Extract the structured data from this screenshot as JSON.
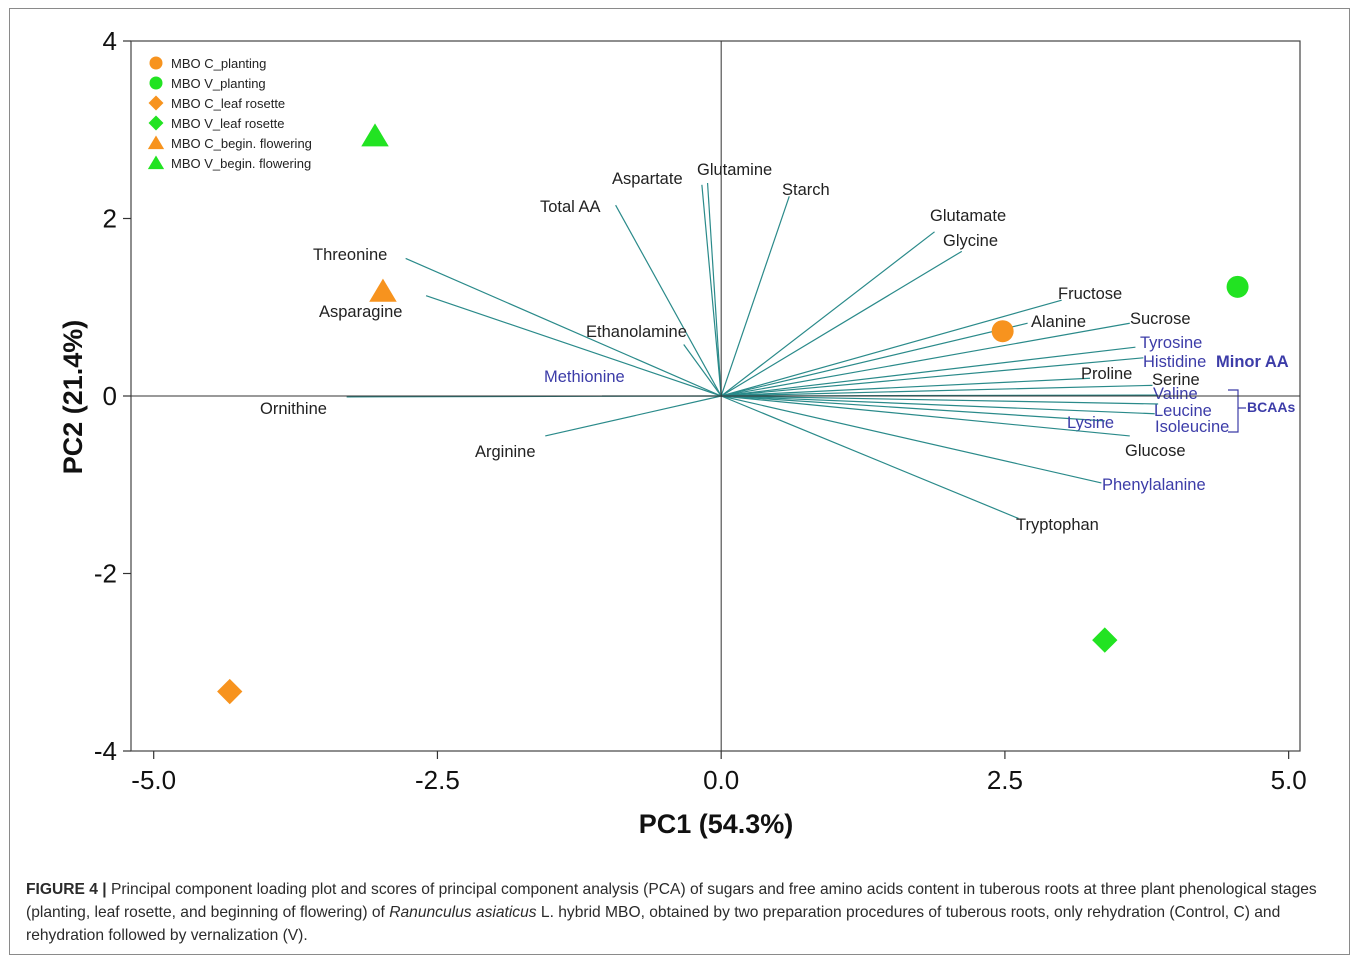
{
  "chart_data": {
    "type": "scatter",
    "xlabel": "PC1 (54.3%)",
    "ylabel": "PC2 (21.4%)",
    "xlim": [
      -5.2,
      5.1
    ],
    "ylim": [
      -4.0,
      4.0
    ],
    "xticks": [
      -5.0,
      -2.5,
      0.0,
      2.5,
      5.0
    ],
    "xtick_labels": [
      "-5.0",
      "-2.5",
      "0.0",
      "2.5",
      "5.0"
    ],
    "yticks": [
      -4,
      -2,
      0,
      2,
      4
    ],
    "ytick_labels": [
      "-4",
      "-2",
      "0",
      "2",
      "4"
    ],
    "grid": false,
    "legend_position": "top-left",
    "score_series": [
      {
        "name": "MBO C_planting",
        "marker": "circle",
        "color": "#f7931e",
        "x": 2.48,
        "y": 0.73
      },
      {
        "name": "MBO V_planting",
        "marker": "circle",
        "color": "#22e322",
        "x": 4.55,
        "y": 1.23
      },
      {
        "name": "MBO C_leaf rosette",
        "marker": "diamond",
        "color": "#f7931e",
        "x": -4.33,
        "y": -3.33
      },
      {
        "name": "MBO V_leaf rosette",
        "marker": "diamond",
        "color": "#22e322",
        "x": 3.38,
        "y": -2.75
      },
      {
        "name": "MBO C_begin. flowering",
        "marker": "triangle",
        "color": "#f7931e",
        "x": -2.98,
        "y": 1.18
      },
      {
        "name": "MBO V_begin. flowering",
        "marker": "triangle",
        "color": "#22e322",
        "x": -3.05,
        "y": 2.93
      }
    ],
    "loadings": [
      {
        "label": "Total AA",
        "x": -0.93,
        "y": 2.15,
        "label_color": "#222222"
      },
      {
        "label": "Aspartate",
        "x": -0.17,
        "y": 2.38,
        "label_color": "#222222"
      },
      {
        "label": "Glutamine",
        "x": -0.12,
        "y": 2.4,
        "label_color": "#222222"
      },
      {
        "label": "Starch",
        "x": 0.6,
        "y": 2.25,
        "label_color": "#222222"
      },
      {
        "label": "Glutamate",
        "x": 1.88,
        "y": 1.85,
        "label_color": "#222222"
      },
      {
        "label": "Glycine",
        "x": 2.12,
        "y": 1.63,
        "label_color": "#222222"
      },
      {
        "label": "Fructose",
        "x": 3.0,
        "y": 1.08,
        "label_color": "#222222"
      },
      {
        "label": "Alanine",
        "x": 2.7,
        "y": 0.82,
        "label_color": "#222222"
      },
      {
        "label": "Sucrose",
        "x": 3.6,
        "y": 0.82,
        "label_color": "#222222"
      },
      {
        "label": "Tyrosine",
        "x": 3.65,
        "y": 0.55,
        "label_color": "#3c3ca8"
      },
      {
        "label": "Histidine",
        "x": 3.72,
        "y": 0.43,
        "label_color": "#3c3ca8"
      },
      {
        "label": "Proline",
        "x": 3.25,
        "y": 0.2,
        "label_color": "#222222"
      },
      {
        "label": "Serine",
        "x": 3.8,
        "y": 0.12,
        "label_color": "#222222"
      },
      {
        "label": "Valine",
        "x": 3.85,
        "y": 0.01,
        "label_color": "#3c3ca8"
      },
      {
        "label": "Leucine",
        "x": 3.85,
        "y": -0.09,
        "label_color": "#3c3ca8"
      },
      {
        "label": "Isoleucine",
        "x": 3.82,
        "y": -0.2,
        "label_color": "#3c3ca8"
      },
      {
        "label": "Lysine",
        "x": 3.38,
        "y": -0.28,
        "label_color": "#3c3ca8"
      },
      {
        "label": "Glucose",
        "x": 3.6,
        "y": -0.45,
        "label_color": "#222222"
      },
      {
        "label": "Phenylalanine",
        "x": 3.35,
        "y": -0.98,
        "label_color": "#3c3ca8"
      },
      {
        "label": "Tryptophan",
        "x": 2.62,
        "y": -1.38,
        "label_color": "#222222"
      },
      {
        "label": "Ethanolamine",
        "x": -0.33,
        "y": 0.58,
        "label_color": "#222222"
      },
      {
        "label": "Threonine",
        "x": -2.78,
        "y": 1.55,
        "label_color": "#222222"
      },
      {
        "label": "Asparagine",
        "x": -2.6,
        "y": 1.13,
        "label_color": "#222222"
      },
      {
        "label": "Methionine",
        "x": -1.05,
        "y": 0.0,
        "label_color": "#3c3ca8"
      },
      {
        "label": "Ornithine",
        "x": -3.3,
        "y": -0.01,
        "label_color": "#222222"
      },
      {
        "label": "Arginine",
        "x": -1.55,
        "y": -0.45,
        "label_color": "#222222"
      }
    ],
    "group_labels": [
      {
        "label": "Minor AA",
        "color": "#3c3ca8"
      },
      {
        "label": "BCAAs",
        "color": "#3c3ca8"
      }
    ]
  },
  "caption": {
    "lead": "FIGURE 4 |",
    "text_1": " Principal component loading plot and scores of principal component analysis (PCA) of sugars and free amino acids content in tuberous roots at three plant phenological stages (planting, leaf rosette, and beginning of flowering) of ",
    "species": "Ranunculus asiaticus",
    "text_2": " L. hybrid MBO, obtained by two preparation procedures of tuberous roots, only rehydration (Control, C) and rehydration followed by vernalization (V)."
  }
}
